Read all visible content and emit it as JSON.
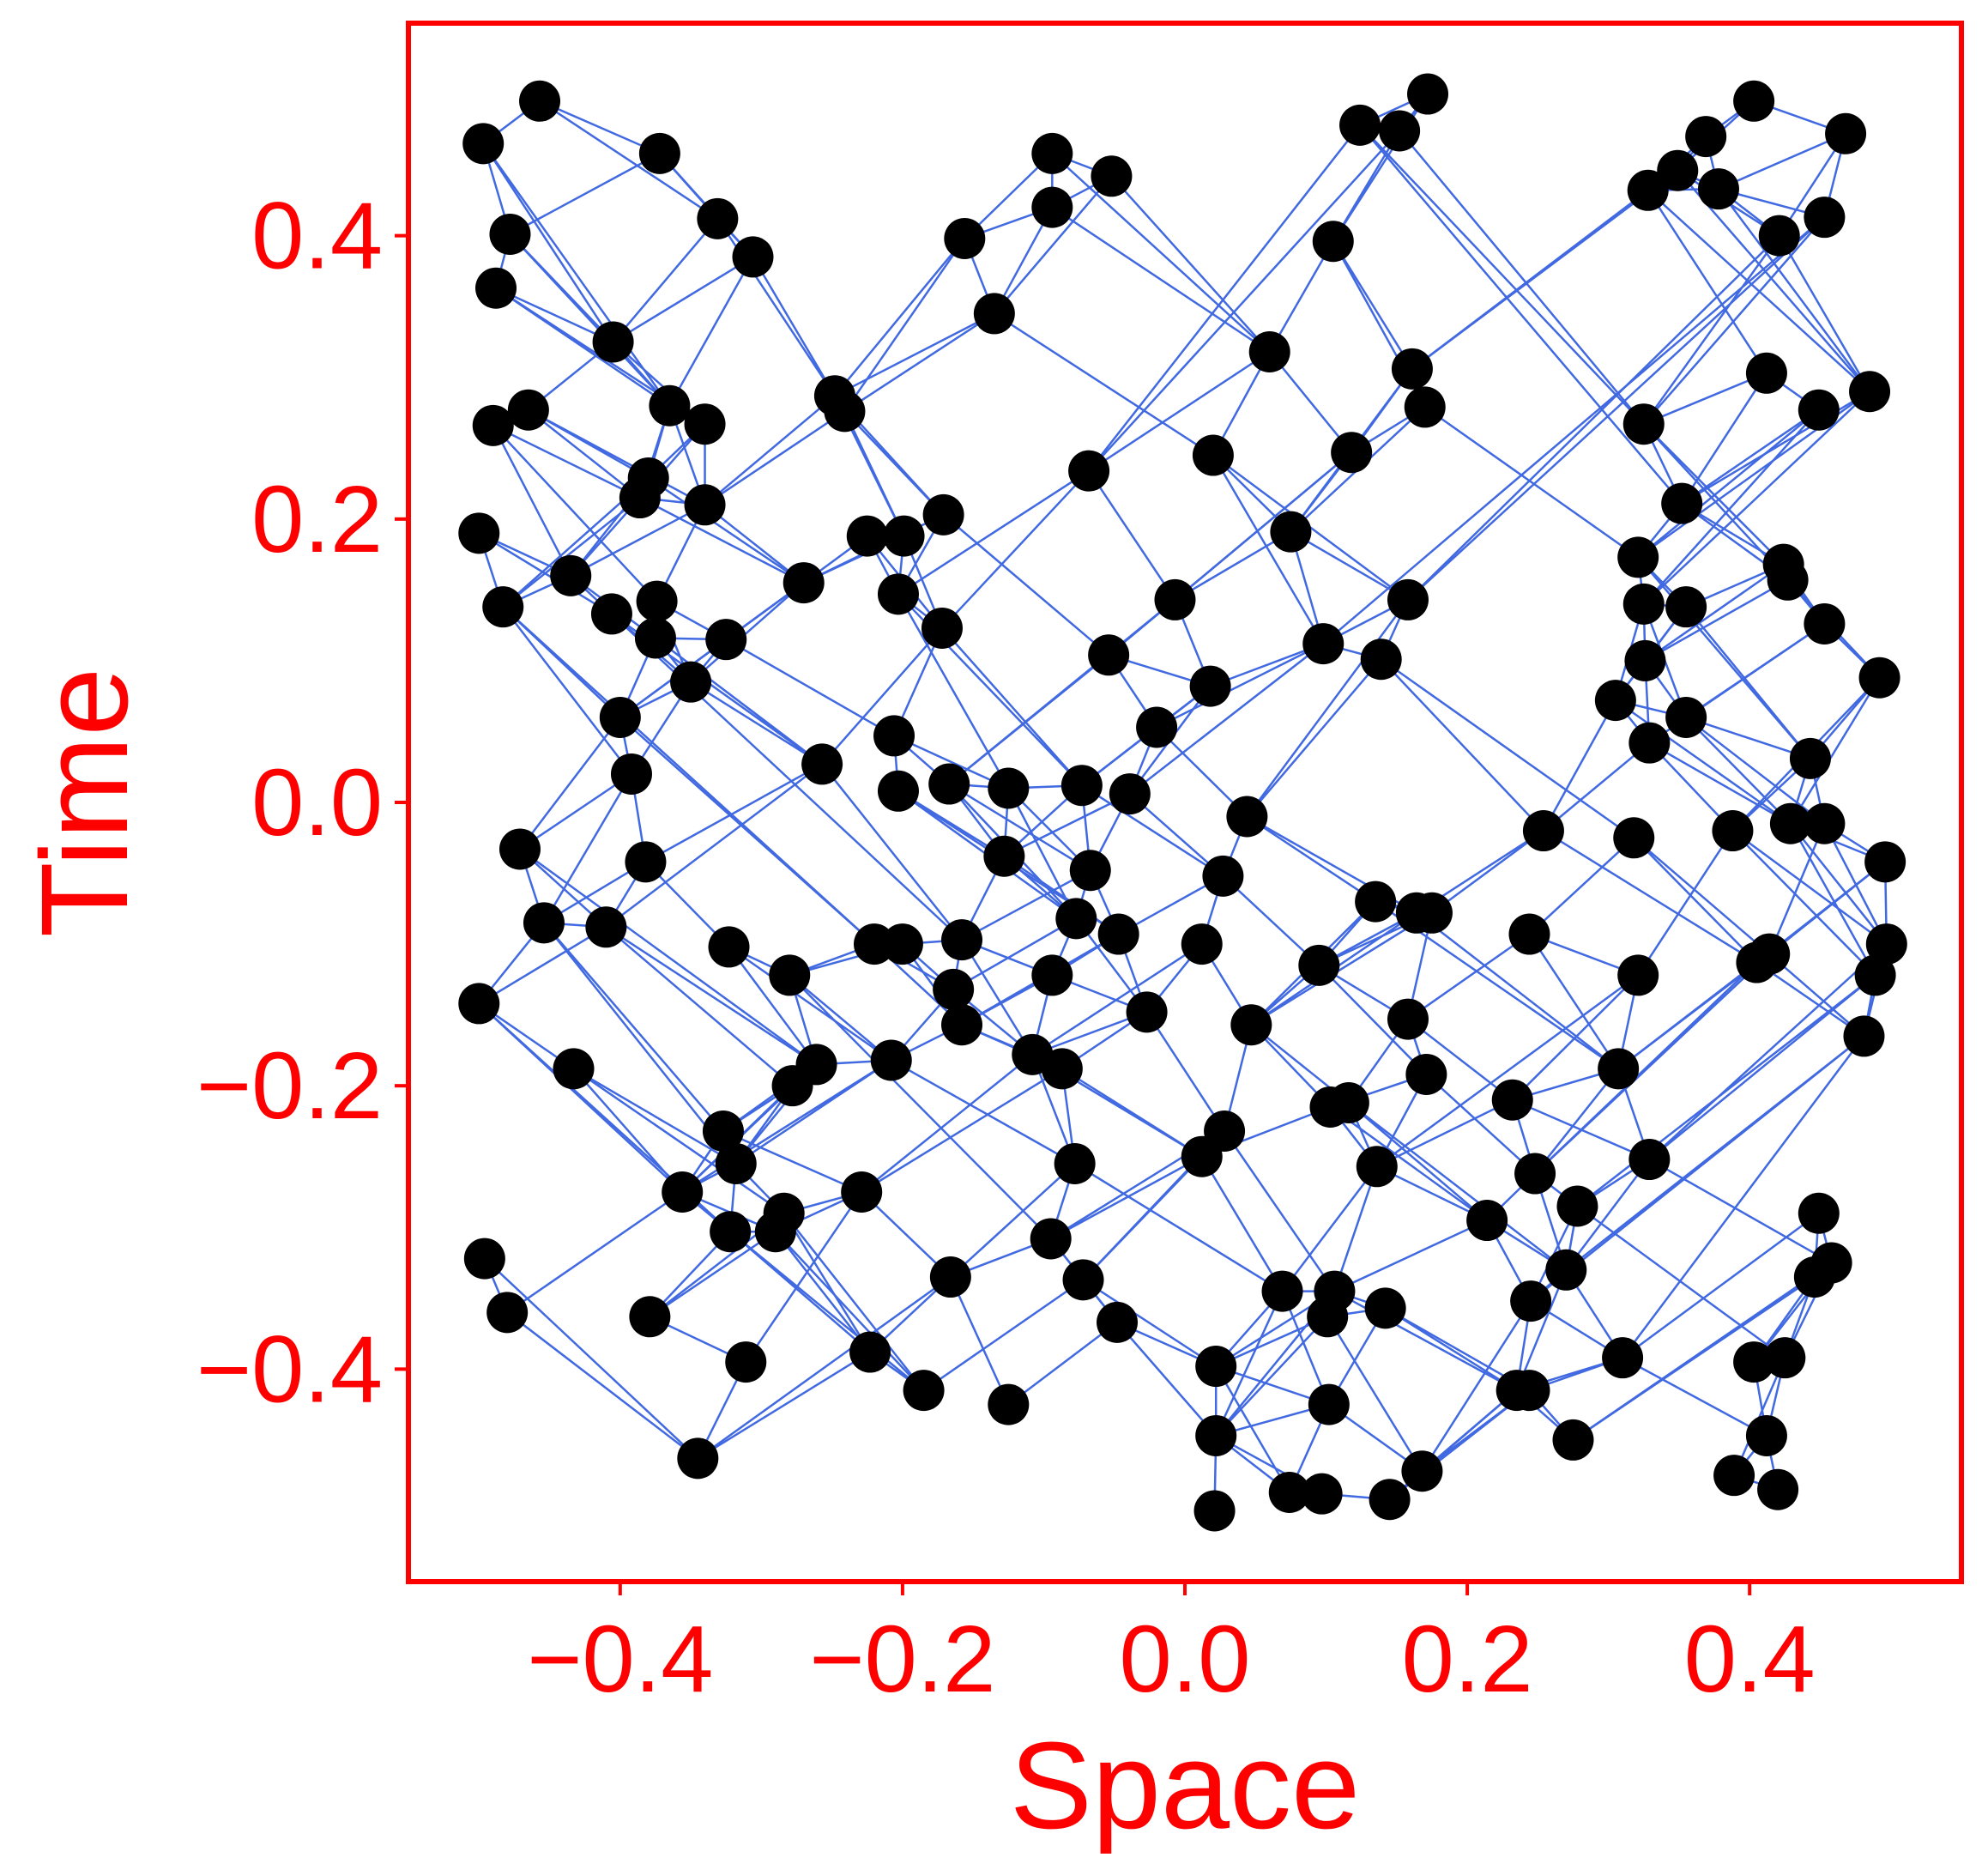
{
  "chart_data": {
    "type": "scatter",
    "title": "",
    "xlabel": "Space",
    "ylabel": "Time",
    "xlim": [
      -0.55,
      0.55
    ],
    "ylim": [
      -0.55,
      0.55
    ],
    "x_ticks": [
      "−0.4",
      "−0.2",
      "0.0",
      "0.2",
      "0.4"
    ],
    "x_tick_values": [
      -0.4,
      -0.2,
      0.0,
      0.2,
      0.4
    ],
    "y_ticks": [
      "0.4",
      "0.2",
      "0.0",
      "−0.2",
      "−0.4"
    ],
    "y_tick_values": [
      0.4,
      0.2,
      0.0,
      -0.2,
      -0.4
    ],
    "grid": false,
    "legend": "none",
    "colors": {
      "points": "#000000",
      "edges": "#4169e1",
      "axes": "#ff0000",
      "frame": "#ff0000"
    },
    "points": [
      [
        -0.497,
        0.465
      ],
      [
        -0.457,
        0.495
      ],
      [
        -0.372,
        0.458
      ],
      [
        -0.331,
        0.412
      ],
      [
        -0.306,
        0.385
      ],
      [
        -0.156,
        0.398
      ],
      [
        -0.094,
        0.458
      ],
      [
        -0.052,
        0.442
      ],
      [
        -0.094,
        0.42
      ],
      [
        0.124,
        0.478
      ],
      [
        0.152,
        0.474
      ],
      [
        0.172,
        0.5
      ],
      [
        0.403,
        0.495
      ],
      [
        0.468,
        0.472
      ],
      [
        0.369,
        0.47
      ],
      [
        0.328,
        0.432
      ],
      [
        0.349,
        0.446
      ],
      [
        0.378,
        0.433
      ],
      [
        0.453,
        0.413
      ],
      [
        0.421,
        0.4
      ],
      [
        0.105,
        0.396
      ],
      [
        -0.478,
        0.401
      ],
      [
        -0.488,
        0.363
      ],
      [
        -0.135,
        0.345
      ],
      [
        -0.405,
        0.325
      ],
      [
        0.06,
        0.318
      ],
      [
        0.161,
        0.306
      ],
      [
        0.17,
        0.279
      ],
      [
        0.412,
        0.303
      ],
      [
        0.485,
        0.29
      ],
      [
        0.449,
        0.277
      ],
      [
        0.325,
        0.267
      ],
      [
        -0.49,
        0.266
      ],
      [
        -0.465,
        0.277
      ],
      [
        -0.365,
        0.28
      ],
      [
        -0.34,
        0.267
      ],
      [
        -0.248,
        0.287
      ],
      [
        -0.241,
        0.276
      ],
      [
        0.02,
        0.245
      ],
      [
        0.118,
        0.247
      ],
      [
        -0.068,
        0.234
      ],
      [
        -0.38,
        0.229
      ],
      [
        -0.386,
        0.215
      ],
      [
        -0.34,
        0.21
      ],
      [
        0.352,
        0.211
      ],
      [
        -0.5,
        0.19
      ],
      [
        -0.225,
        0.188
      ],
      [
        -0.199,
        0.188
      ],
      [
        -0.171,
        0.203
      ],
      [
        0.075,
        0.191
      ],
      [
        0.321,
        0.173
      ],
      [
        0.424,
        0.168
      ],
      [
        0.427,
        0.157
      ],
      [
        -0.435,
        0.16
      ],
      [
        -0.27,
        0.155
      ],
      [
        -0.203,
        0.147
      ],
      [
        -0.483,
        0.138
      ],
      [
        -0.406,
        0.133
      ],
      [
        -0.374,
        0.142
      ],
      [
        -0.007,
        0.143
      ],
      [
        0.158,
        0.143
      ],
      [
        0.325,
        0.14
      ],
      [
        0.355,
        0.138
      ],
      [
        -0.375,
        0.116
      ],
      [
        -0.325,
        0.115
      ],
      [
        -0.172,
        0.123
      ],
      [
        -0.054,
        0.104
      ],
      [
        0.098,
        0.112
      ],
      [
        0.139,
        0.101
      ],
      [
        0.453,
        0.126
      ],
      [
        0.326,
        0.1
      ],
      [
        0.492,
        0.088
      ],
      [
        -0.35,
        0.085
      ],
      [
        -0.4,
        0.06
      ],
      [
        0.018,
        0.082
      ],
      [
        0.305,
        0.072
      ],
      [
        0.355,
        0.06
      ],
      [
        -0.02,
        0.053
      ],
      [
        -0.206,
        0.047
      ],
      [
        -0.257,
        0.027
      ],
      [
        -0.392,
        0.02
      ],
      [
        0.329,
        0.042
      ],
      [
        0.443,
        0.031
      ],
      [
        -0.203,
        0.008
      ],
      [
        -0.167,
        0.013
      ],
      [
        -0.125,
        0.01
      ],
      [
        -0.073,
        0.012
      ],
      [
        -0.039,
        0.006
      ],
      [
        0.044,
        -0.01
      ],
      [
        0.254,
        -0.02
      ],
      [
        0.318,
        -0.025
      ],
      [
        0.388,
        -0.02
      ],
      [
        0.429,
        -0.015
      ],
      [
        0.453,
        -0.015
      ],
      [
        -0.471,
        -0.033
      ],
      [
        -0.382,
        -0.042
      ],
      [
        -0.128,
        -0.038
      ],
      [
        -0.067,
        -0.048
      ],
      [
        0.027,
        -0.052
      ],
      [
        0.135,
        -0.07
      ],
      [
        0.164,
        -0.078
      ],
      [
        0.175,
        -0.078
      ],
      [
        0.496,
        -0.042
      ],
      [
        -0.454,
        -0.085
      ],
      [
        -0.41,
        -0.088
      ],
      [
        -0.323,
        -0.102
      ],
      [
        -0.22,
        -0.1
      ],
      [
        -0.2,
        -0.1
      ],
      [
        -0.158,
        -0.097
      ],
      [
        -0.077,
        -0.082
      ],
      [
        -0.047,
        -0.093
      ],
      [
        0.012,
        -0.1
      ],
      [
        0.095,
        -0.115
      ],
      [
        0.244,
        -0.093
      ],
      [
        0.414,
        -0.107
      ],
      [
        0.405,
        -0.113
      ],
      [
        0.497,
        -0.1
      ],
      [
        0.489,
        -0.122
      ],
      [
        -0.5,
        -0.142
      ],
      [
        -0.28,
        -0.122
      ],
      [
        -0.164,
        -0.132
      ],
      [
        -0.158,
        -0.157
      ],
      [
        -0.094,
        -0.122
      ],
      [
        -0.027,
        -0.148
      ],
      [
        0.047,
        -0.157
      ],
      [
        0.158,
        -0.153
      ],
      [
        0.321,
        -0.122
      ],
      [
        0.481,
        -0.165
      ],
      [
        -0.433,
        -0.188
      ],
      [
        -0.261,
        -0.185
      ],
      [
        -0.278,
        -0.2
      ],
      [
        -0.208,
        -0.182
      ],
      [
        -0.108,
        -0.178
      ],
      [
        -0.087,
        -0.188
      ],
      [
        0.103,
        -0.215
      ],
      [
        0.116,
        -0.212
      ],
      [
        0.171,
        -0.192
      ],
      [
        0.232,
        -0.21
      ],
      [
        0.307,
        -0.188
      ],
      [
        -0.327,
        -0.232
      ],
      [
        -0.318,
        -0.255
      ],
      [
        -0.078,
        -0.255
      ],
      [
        0.012,
        -0.25
      ],
      [
        0.028,
        -0.232
      ],
      [
        0.136,
        -0.257
      ],
      [
        0.248,
        -0.262
      ],
      [
        0.329,
        -0.252
      ],
      [
        -0.356,
        -0.275
      ],
      [
        -0.229,
        -0.275
      ],
      [
        -0.322,
        -0.303
      ],
      [
        -0.29,
        -0.303
      ],
      [
        -0.284,
        -0.29
      ],
      [
        -0.095,
        -0.308
      ],
      [
        0.214,
        -0.295
      ],
      [
        0.278,
        -0.285
      ],
      [
        0.449,
        -0.29
      ],
      [
        -0.496,
        -0.322
      ],
      [
        -0.166,
        -0.335
      ],
      [
        -0.072,
        -0.337
      ],
      [
        0.069,
        -0.345
      ],
      [
        0.106,
        -0.345
      ],
      [
        0.101,
        -0.363
      ],
      [
        0.142,
        -0.357
      ],
      [
        0.245,
        -0.352
      ],
      [
        0.27,
        -0.33
      ],
      [
        0.446,
        -0.335
      ],
      [
        0.458,
        -0.325
      ],
      [
        -0.48,
        -0.36
      ],
      [
        -0.379,
        -0.363
      ],
      [
        -0.223,
        -0.388
      ],
      [
        -0.048,
        -0.367
      ],
      [
        -0.311,
        -0.395
      ],
      [
        0.022,
        -0.398
      ],
      [
        0.102,
        -0.425
      ],
      [
        0.235,
        -0.415
      ],
      [
        0.244,
        -0.415
      ],
      [
        0.31,
        -0.392
      ],
      [
        0.403,
        -0.395
      ],
      [
        0.425,
        -0.392
      ],
      [
        -0.185,
        -0.415
      ],
      [
        -0.125,
        -0.425
      ],
      [
        0.022,
        -0.447
      ],
      [
        0.275,
        -0.45
      ],
      [
        0.412,
        -0.447
      ],
      [
        -0.345,
        -0.463
      ],
      [
        0.168,
        -0.472
      ],
      [
        0.389,
        -0.475
      ],
      [
        0.42,
        -0.485
      ],
      [
        0.074,
        -0.487
      ],
      [
        0.097,
        -0.488
      ],
      [
        0.145,
        -0.492
      ],
      [
        0.021,
        -0.5
      ]
    ]
  }
}
